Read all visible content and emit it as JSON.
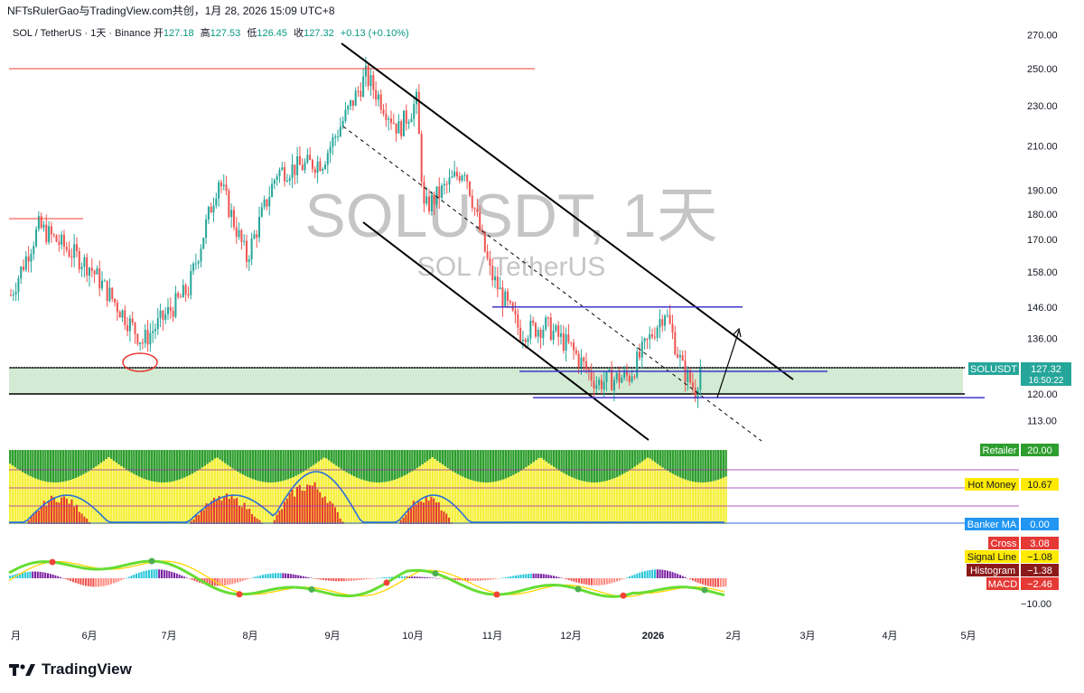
{
  "header": {
    "title": "NFTsRulerGao与TradingView.com共创，1月 28, 2026 15:09 UTC+8"
  },
  "legend": {
    "symbol": "SOL / TetherUS · 1天 · Binance",
    "open_label": "开",
    "open": "127.18",
    "high_label": "高",
    "high": "127.53",
    "low_label": "低",
    "low": "126.45",
    "close_label": "收",
    "close": "127.32",
    "change": "+0.13 (+0.10%)"
  },
  "watermark": {
    "main": "SOLUSDT, 1天",
    "sub": "SOL / TetherUS"
  },
  "price_tag": {
    "symbol": "SOLUSDT",
    "price": "127.32",
    "countdown": "16:50:22"
  },
  "indicator_labels": {
    "retailer": {
      "name": "Retailer",
      "value": "20.00"
    },
    "hot_money": {
      "name": "Hot Money",
      "value": "10.67"
    },
    "banker_ma": {
      "name": "Banker MA",
      "value": "0.00"
    },
    "cross": {
      "name": "Cross",
      "value": "3.08"
    },
    "signal_line": {
      "name": "Signal Line",
      "value": "−1.08"
    },
    "histogram": {
      "name": "Histogram",
      "value": "−1.38"
    },
    "macd": {
      "name": "MACD",
      "value": "−2.46"
    }
  },
  "footer": {
    "brand": "TradingView"
  },
  "chart_data": {
    "type": "candlestick",
    "title": "",
    "y_axis": {
      "scale": "log",
      "ticks": [
        270,
        250,
        230,
        210,
        190,
        180,
        170,
        158,
        146,
        136,
        120,
        113
      ],
      "tick_labels": [
        "270.00",
        "250.00",
        "230.00",
        "210.00",
        "190.00",
        "180.00",
        "170.00",
        "158.00",
        "146.00",
        "136.00",
        "120.00",
        "113.00"
      ]
    },
    "macd_axis": {
      "tick": -10,
      "tick_label": "−10.00"
    },
    "x_axis": {
      "tick_labels": [
        "月",
        "6月",
        "7月",
        "8月",
        "9月",
        "10月",
        "11月",
        "12月",
        "2026",
        "2月",
        "3月",
        "4月",
        "5月"
      ]
    },
    "close_series_approx": [
      {
        "date": "2025-05-01",
        "close": 150
      },
      {
        "date": "2025-05-12",
        "close": 175
      },
      {
        "date": "2025-06-01",
        "close": 160
      },
      {
        "date": "2025-06-22",
        "close": 135
      },
      {
        "date": "2025-07-10",
        "close": 152
      },
      {
        "date": "2025-07-22",
        "close": 195
      },
      {
        "date": "2025-08-02",
        "close": 163
      },
      {
        "date": "2025-08-14",
        "close": 198
      },
      {
        "date": "2025-09-01",
        "close": 203
      },
      {
        "date": "2025-09-18",
        "close": 246
      },
      {
        "date": "2025-10-01",
        "close": 218
      },
      {
        "date": "2025-10-08",
        "close": 232
      },
      {
        "date": "2025-10-11",
        "close": 182
      },
      {
        "date": "2025-10-27",
        "close": 200
      },
      {
        "date": "2025-11-06",
        "close": 158
      },
      {
        "date": "2025-11-18",
        "close": 138
      },
      {
        "date": "2025-11-28",
        "close": 140
      },
      {
        "date": "2025-12-08",
        "close": 133
      },
      {
        "date": "2025-12-18",
        "close": 123
      },
      {
        "date": "2025-12-31",
        "close": 125
      },
      {
        "date": "2026-01-14",
        "close": 145
      },
      {
        "date": "2026-01-21",
        "close": 127
      },
      {
        "date": "2026-01-26",
        "close": 121
      },
      {
        "date": "2026-01-28",
        "close": 127.32
      }
    ],
    "levels": {
      "resistance_high": 250,
      "support_zone": [
        120,
        127.32
      ],
      "range_top": 146,
      "range_bottom": 119
    },
    "grid": false
  }
}
